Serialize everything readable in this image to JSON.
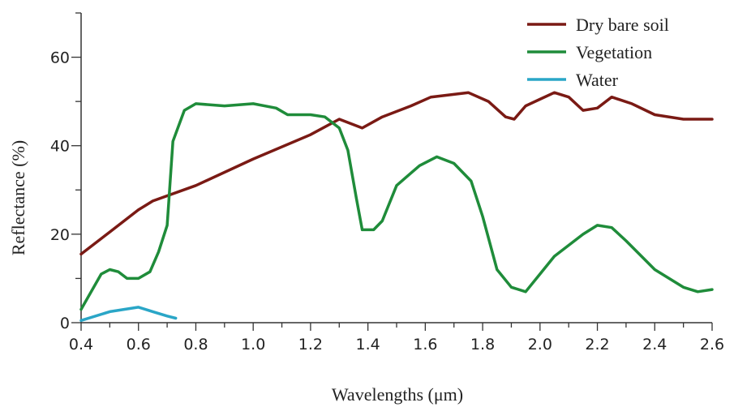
{
  "chart_data": {
    "type": "line",
    "title": "",
    "xlabel": "Wavelengths (μm)",
    "ylabel": "Reflectance (%)",
    "xlim": [
      0.4,
      2.6
    ],
    "ylim": [
      0,
      70
    ],
    "x_ticks": [
      "0.4",
      "0.6",
      "0.8",
      "1.0",
      "1.2",
      "1.4",
      "1.6",
      "1.8",
      "2.0",
      "2.2",
      "2.4",
      "2.6"
    ],
    "y_ticks": [
      "0",
      "20",
      "40",
      "60"
    ],
    "grid": false,
    "legend_position": "top-right",
    "series": [
      {
        "name": "Dry bare soil",
        "color": "#7a1a14",
        "points": [
          [
            0.4,
            15.5
          ],
          [
            0.5,
            20.5
          ],
          [
            0.6,
            25.5
          ],
          [
            0.65,
            27.5
          ],
          [
            0.8,
            31
          ],
          [
            1.0,
            37
          ],
          [
            1.2,
            42.5
          ],
          [
            1.3,
            46
          ],
          [
            1.38,
            44
          ],
          [
            1.45,
            46.5
          ],
          [
            1.55,
            49
          ],
          [
            1.62,
            51
          ],
          [
            1.75,
            52
          ],
          [
            1.82,
            50
          ],
          [
            1.88,
            46.5
          ],
          [
            1.91,
            46
          ],
          [
            1.95,
            49
          ],
          [
            2.0,
            50.5
          ],
          [
            2.05,
            52
          ],
          [
            2.1,
            51
          ],
          [
            2.15,
            48
          ],
          [
            2.2,
            48.5
          ],
          [
            2.25,
            51
          ],
          [
            2.32,
            49.5
          ],
          [
            2.4,
            47
          ],
          [
            2.5,
            46
          ],
          [
            2.6,
            46
          ]
        ]
      },
      {
        "name": "Vegetation",
        "color": "#1f8c3a",
        "points": [
          [
            0.4,
            3
          ],
          [
            0.47,
            11
          ],
          [
            0.5,
            12
          ],
          [
            0.53,
            11.5
          ],
          [
            0.56,
            10
          ],
          [
            0.6,
            10
          ],
          [
            0.64,
            11.5
          ],
          [
            0.67,
            16
          ],
          [
            0.7,
            22
          ],
          [
            0.72,
            41
          ],
          [
            0.76,
            48
          ],
          [
            0.8,
            49.5
          ],
          [
            0.9,
            49
          ],
          [
            1.0,
            49.5
          ],
          [
            1.08,
            48.5
          ],
          [
            1.12,
            47
          ],
          [
            1.2,
            47
          ],
          [
            1.25,
            46.5
          ],
          [
            1.3,
            44
          ],
          [
            1.33,
            39
          ],
          [
            1.36,
            28
          ],
          [
            1.38,
            21
          ],
          [
            1.42,
            21
          ],
          [
            1.45,
            23
          ],
          [
            1.5,
            31
          ],
          [
            1.58,
            35.5
          ],
          [
            1.64,
            37.5
          ],
          [
            1.7,
            36
          ],
          [
            1.76,
            32
          ],
          [
            1.8,
            24
          ],
          [
            1.85,
            12
          ],
          [
            1.9,
            8
          ],
          [
            1.95,
            7
          ],
          [
            2.0,
            11
          ],
          [
            2.05,
            15
          ],
          [
            2.1,
            17.5
          ],
          [
            2.15,
            20
          ],
          [
            2.2,
            22
          ],
          [
            2.25,
            21.5
          ],
          [
            2.3,
            18.5
          ],
          [
            2.4,
            12
          ],
          [
            2.5,
            8
          ],
          [
            2.55,
            7
          ],
          [
            2.6,
            7.5
          ]
        ]
      },
      {
        "name": "Water",
        "color": "#2aa6c7",
        "points": [
          [
            0.4,
            0.5
          ],
          [
            0.5,
            2.5
          ],
          [
            0.55,
            3
          ],
          [
            0.6,
            3.5
          ],
          [
            0.65,
            2.5
          ],
          [
            0.7,
            1.5
          ],
          [
            0.73,
            1
          ]
        ]
      }
    ]
  }
}
